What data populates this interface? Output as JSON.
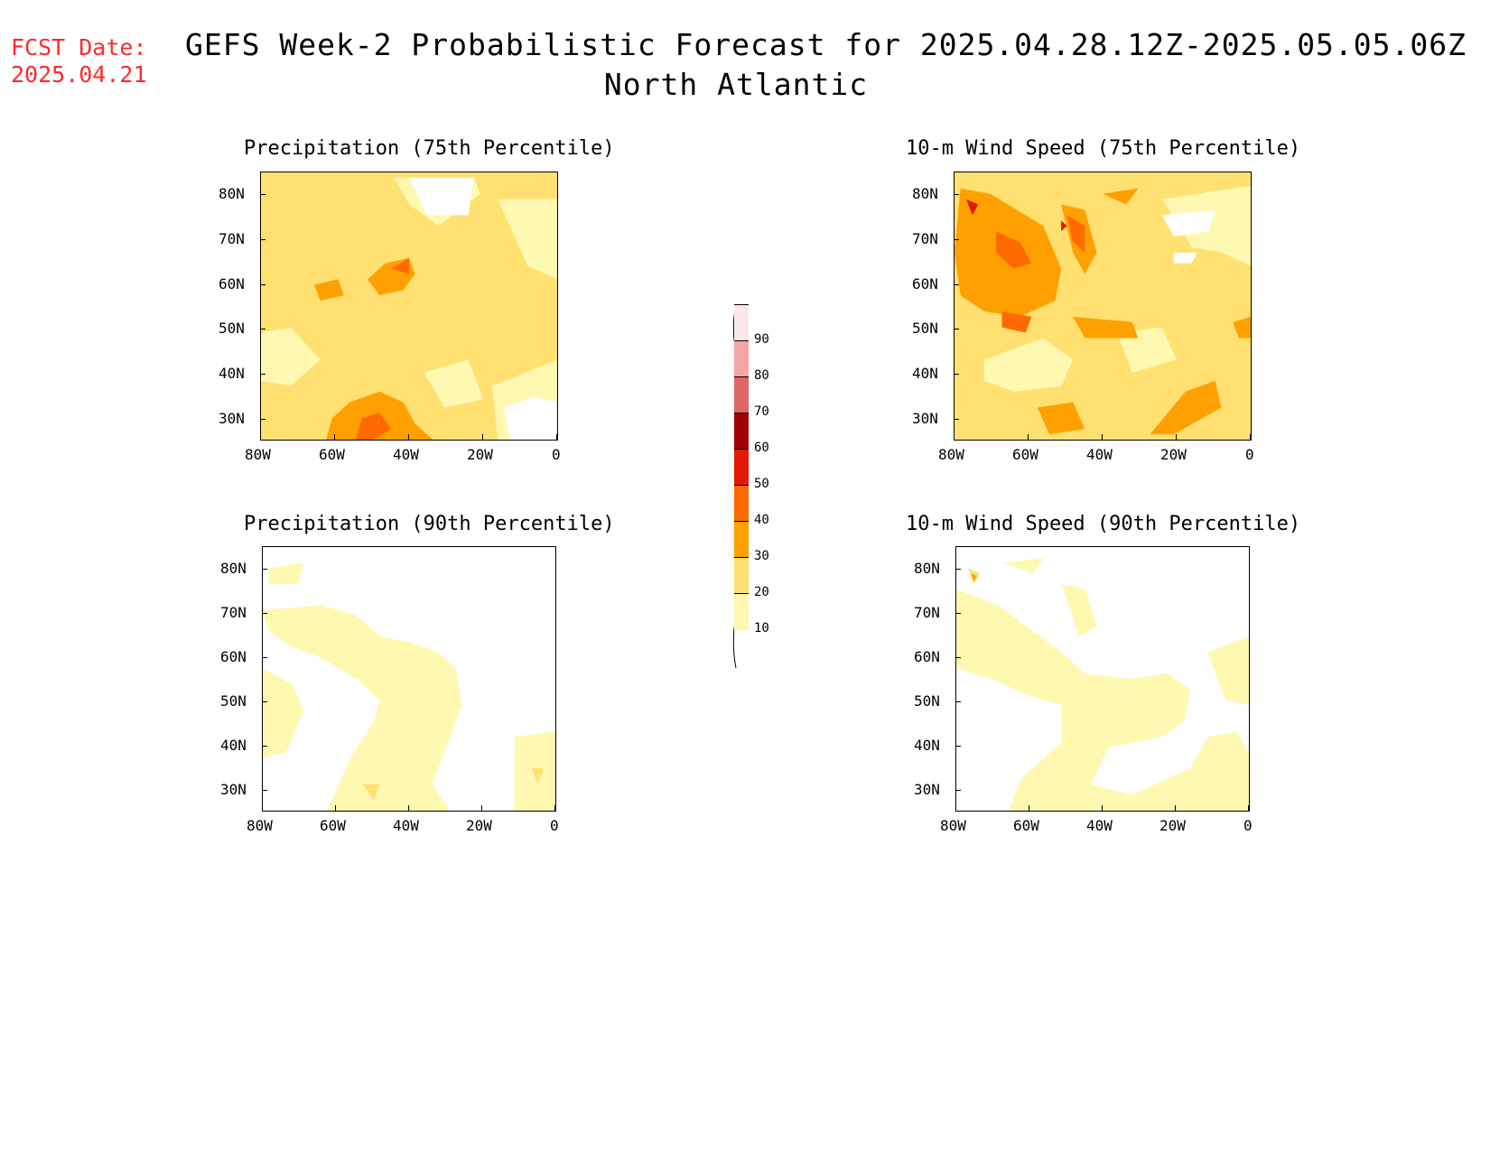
{
  "fcst": {
    "label": "FCST Date:",
    "date": "2025.04.21"
  },
  "title": {
    "line1": "GEFS Week-2 Probabilistic Forecast for 2025.04.28.12Z-2025.05.05.06Z",
    "line2": "North Atlantic"
  },
  "panels": [
    {
      "title": "Precipitation (75th Percentile)",
      "field": "precip75"
    },
    {
      "title": "10-m Wind Speed (75th Percentile)",
      "field": "wind75"
    },
    {
      "title": "Precipitation (90th Percentile)",
      "field": "precip90"
    },
    {
      "title": "10-m Wind Speed (90th Percentile)",
      "field": "wind90"
    }
  ],
  "y_ticks": [
    "80N",
    "70N",
    "60N",
    "50N",
    "40N",
    "30N"
  ],
  "x_ticks": [
    "80W",
    "60W",
    "40W",
    "20W",
    "0"
  ],
  "colorbar": {
    "levels": [
      "90",
      "80",
      "70",
      "60",
      "50",
      "40",
      "30",
      "20",
      "10"
    ],
    "colors": [
      "#fde8e8",
      "#f4a5a5",
      "#e06666",
      "#a00000",
      "#e01a00",
      "#ff6a00",
      "#ffa000",
      "#ffe070",
      "#fff8b0"
    ]
  },
  "colors": {
    "fcst": "#ff2a2a",
    "land_outline": "#000000"
  }
}
